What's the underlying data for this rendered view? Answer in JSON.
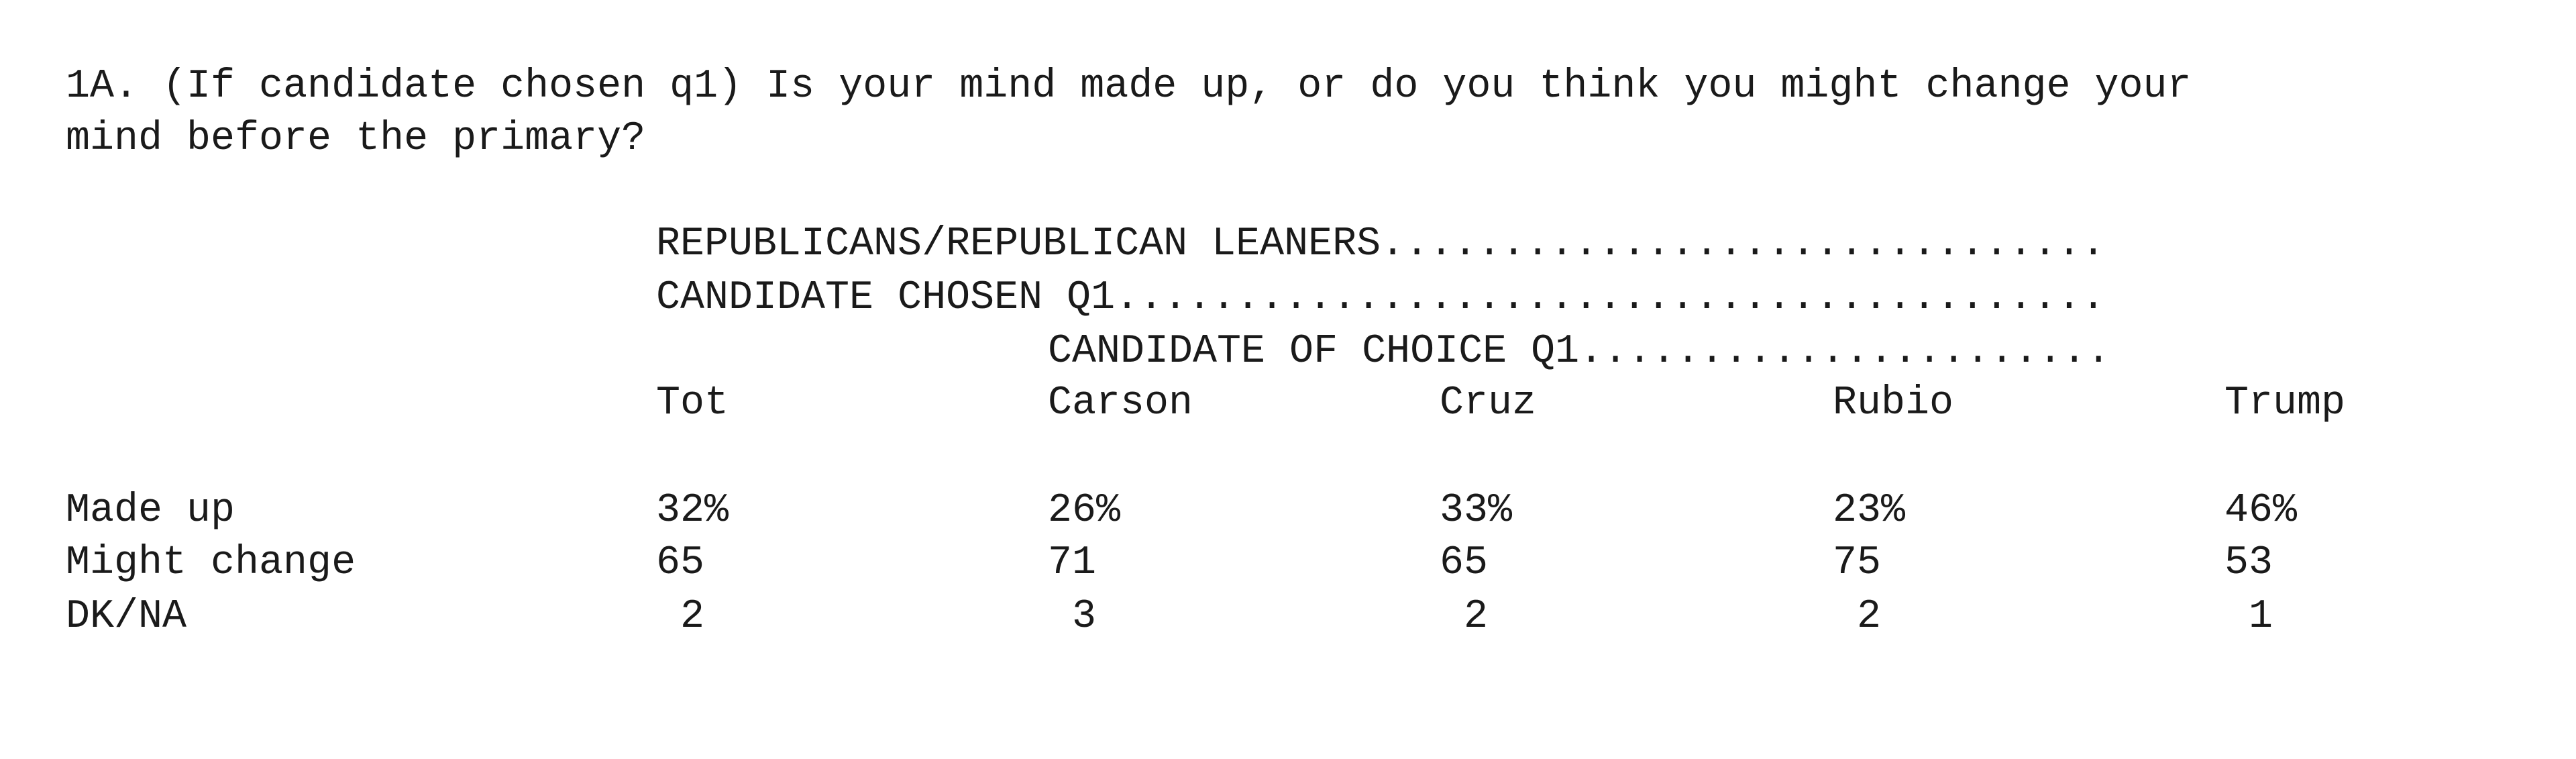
{
  "question": {
    "line1": "1A. (If candidate chosen q1) Is your mind made up, or do you think you might change your",
    "line2": "mind before the primary?"
  },
  "headers": {
    "group1": "REPUBLICANS/REPUBLICAN LEANERS..............................",
    "group2": "CANDIDATE CHOSEN Q1.........................................",
    "group3": "CANDIDATE OF CHOICE Q1......................"
  },
  "columns": [
    "Tot",
    "Carson",
    "Cruz",
    "Rubio",
    "Trump"
  ],
  "rows": [
    {
      "label": "Made up",
      "values": [
        "32%",
        "26%",
        "33%",
        "23%",
        "46%"
      ]
    },
    {
      "label": "Might change",
      "values": [
        "65",
        "71",
        "65",
        "75",
        "53"
      ]
    },
    {
      "label": "DK/NA",
      "values": [
        " 2",
        " 3",
        " 2",
        " 2",
        " 1"
      ]
    }
  ]
}
